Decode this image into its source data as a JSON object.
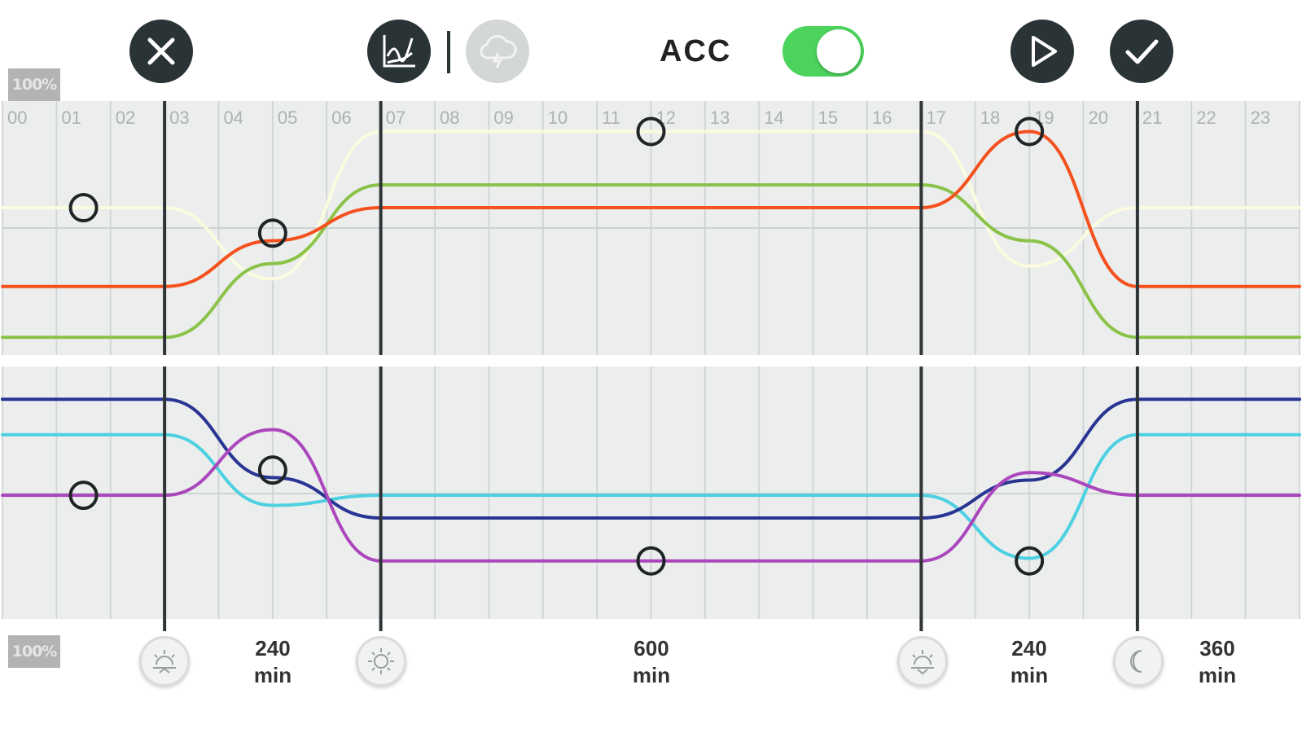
{
  "toolbar": {
    "acc_label": "ACC",
    "acc_enabled": true,
    "icons": {
      "close": "close-icon",
      "chart": "line-chart-icon",
      "cloud": "cloud-lightning-icon",
      "play": "play-icon",
      "confirm": "checkmark-icon"
    }
  },
  "badges": {
    "top": "100%",
    "bottom": "100%"
  },
  "chart_data": {
    "type": "line",
    "x": [
      "00",
      "01",
      "02",
      "03",
      "04",
      "05",
      "06",
      "07",
      "08",
      "09",
      "10",
      "11",
      "12",
      "13",
      "14",
      "15",
      "16",
      "17",
      "18",
      "19",
      "20",
      "21",
      "22",
      "23"
    ],
    "phase_boundaries_hours": [
      3,
      7,
      17,
      21
    ],
    "panels": [
      {
        "name": "upper",
        "series": [
          {
            "color": "#fbfbe0",
            "points": [
              [
                0,
                0.58
              ],
              [
                3,
                0.58
              ],
              [
                5,
                0.3
              ],
              [
                7,
                0.88
              ],
              [
                17,
                0.88
              ],
              [
                19,
                0.35
              ],
              [
                21,
                0.58
              ],
              [
                24,
                0.58
              ]
            ]
          },
          {
            "color": "#8bc34a",
            "points": [
              [
                0,
                0.07
              ],
              [
                3,
                0.07
              ],
              [
                5,
                0.36
              ],
              [
                7,
                0.67
              ],
              [
                17,
                0.67
              ],
              [
                19,
                0.45
              ],
              [
                21,
                0.07
              ],
              [
                24,
                0.07
              ]
            ]
          },
          {
            "color": "#f4511e",
            "points": [
              [
                0,
                0.27
              ],
              [
                3,
                0.27
              ],
              [
                5,
                0.45
              ],
              [
                7,
                0.58
              ],
              [
                17,
                0.58
              ],
              [
                19,
                0.88
              ],
              [
                21,
                0.27
              ],
              [
                24,
                0.27
              ]
            ]
          }
        ],
        "handles": [
          [
            1.5,
            0.58
          ],
          [
            5,
            0.48
          ],
          [
            12,
            0.88
          ],
          [
            19,
            0.88
          ]
        ]
      },
      {
        "name": "lower",
        "series": [
          {
            "color": "#4dd0e1",
            "points": [
              [
                0,
                0.73
              ],
              [
                3,
                0.73
              ],
              [
                5,
                0.45
              ],
              [
                7,
                0.49
              ],
              [
                17,
                0.49
              ],
              [
                19,
                0.24
              ],
              [
                21,
                0.73
              ],
              [
                24,
                0.73
              ]
            ]
          },
          {
            "color": "#283593",
            "points": [
              [
                0,
                0.87
              ],
              [
                3,
                0.87
              ],
              [
                5,
                0.56
              ],
              [
                7,
                0.4
              ],
              [
                17,
                0.4
              ],
              [
                19,
                0.55
              ],
              [
                21,
                0.87
              ],
              [
                24,
                0.87
              ]
            ]
          },
          {
            "color": "#ab47bc",
            "points": [
              [
                0,
                0.49
              ],
              [
                3,
                0.49
              ],
              [
                5,
                0.75
              ],
              [
                7,
                0.23
              ],
              [
                17,
                0.23
              ],
              [
                19,
                0.58
              ],
              [
                21,
                0.49
              ],
              [
                24,
                0.49
              ]
            ]
          }
        ],
        "handles": [
          [
            1.5,
            0.49
          ],
          [
            5,
            0.59
          ],
          [
            12,
            0.23
          ],
          [
            19,
            0.23
          ]
        ]
      }
    ]
  },
  "phases": [
    {
      "icon": "sunrise-icon",
      "hour": 3
    },
    {
      "icon": "sun-icon",
      "hour": 7
    },
    {
      "icon": "sunset-icon",
      "hour": 17
    },
    {
      "icon": "moon-icon",
      "hour": 21
    }
  ],
  "durations": [
    {
      "value": "240",
      "unit": "min",
      "hour": 5
    },
    {
      "value": "600",
      "unit": "min",
      "hour": 12
    },
    {
      "value": "240",
      "unit": "min",
      "hour": 19
    },
    {
      "value": "360",
      "unit": "min",
      "hour": 22.5
    }
  ]
}
